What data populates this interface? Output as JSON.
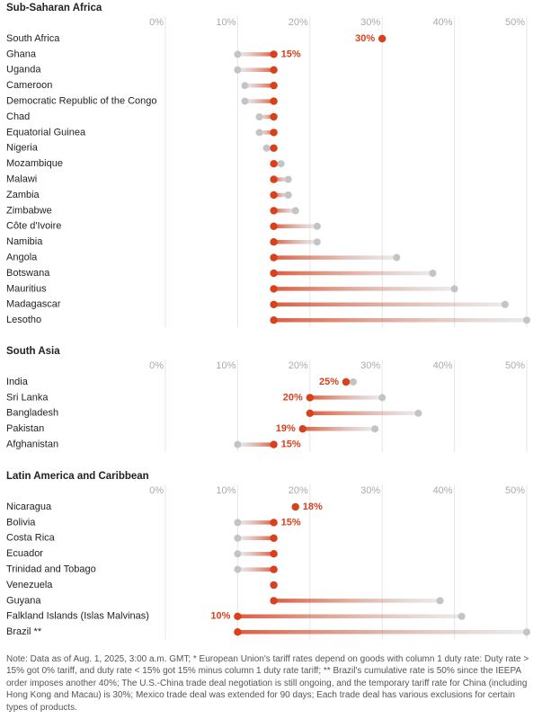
{
  "chart_data": [
    {
      "type": "dumbbell",
      "title": "Sub-Saharan Africa",
      "categories": [
        "South Africa",
        "Ghana",
        "Uganda",
        "Cameroon",
        "Democratic Republic of the Congo",
        "Chad",
        "Equatorial Guinea",
        "Nigeria",
        "Mozambique",
        "Malawi",
        "Zambia",
        "Zimbabwe",
        "Côte d'Ivoire",
        "Namibia",
        "Angola",
        "Botswana",
        "Mauritius",
        "Madagascar",
        "Lesotho"
      ],
      "series": [
        {
          "color": "#c4c4c4",
          "values": [
            30,
            10,
            10,
            11,
            11,
            13,
            13,
            14,
            16,
            17,
            17,
            18,
            21,
            21,
            32,
            37,
            40,
            47,
            50
          ]
        },
        {
          "color": "#d9401c",
          "values": [
            30,
            15,
            15,
            15,
            15,
            15,
            15,
            15,
            15,
            15,
            15,
            15,
            15,
            15,
            15,
            15,
            15,
            15,
            15
          ],
          "value_labels": [
            "30%",
            "15%",
            null,
            null,
            null,
            null,
            null,
            null,
            null,
            null,
            null,
            null,
            null,
            null,
            null,
            null,
            null,
            null,
            null
          ]
        }
      ],
      "xlim": [
        0,
        50
      ],
      "xticks": [
        {
          "value": 0,
          "label": "0%"
        },
        {
          "value": 10,
          "label": "10%"
        },
        {
          "value": 20,
          "label": "20%"
        },
        {
          "value": 30,
          "label": "30%"
        },
        {
          "value": 40,
          "label": "40%"
        },
        {
          "value": 50,
          "label": "50%"
        }
      ]
    },
    {
      "type": "dumbbell",
      "title": "South Asia",
      "categories": [
        "India",
        "Sri Lanka",
        "Bangladesh",
        "Pakistan",
        "Afghanistan"
      ],
      "series": [
        {
          "color": "#c4c4c4",
          "values": [
            26,
            30,
            35,
            29,
            10
          ]
        },
        {
          "color": "#d9401c",
          "values": [
            25,
            20,
            20,
            19,
            15
          ],
          "value_labels": [
            "25%",
            "20%",
            null,
            "19%",
            "15%"
          ]
        }
      ],
      "xlim": [
        0,
        50
      ],
      "xticks": [
        {
          "value": 0,
          "label": "0%"
        },
        {
          "value": 10,
          "label": "10%"
        },
        {
          "value": 20,
          "label": "20%"
        },
        {
          "value": 30,
          "label": "30%"
        },
        {
          "value": 40,
          "label": "40%"
        },
        {
          "value": 50,
          "label": "50%"
        }
      ]
    },
    {
      "type": "dumbbell",
      "title": "Latin America and Caribbean",
      "categories": [
        "Nicaragua",
        "Bolivia",
        "Costa Rica",
        "Ecuador",
        "Trinidad and Tobago",
        "Venezuela",
        "Guyana",
        "Falkland Islands (Islas Malvinas)",
        "Brazil **"
      ],
      "series": [
        {
          "color": "#c4c4c4",
          "values": [
            18,
            10,
            10,
            10,
            10,
            15,
            38,
            41,
            50
          ]
        },
        {
          "color": "#d9401c",
          "values": [
            18,
            15,
            15,
            15,
            15,
            15,
            15,
            10,
            10
          ],
          "value_labels": [
            "18%",
            "15%",
            null,
            null,
            null,
            null,
            null,
            "10%",
            null
          ]
        }
      ],
      "xlim": [
        0,
        50
      ],
      "xticks": [
        {
          "value": 0,
          "label": "0%"
        },
        {
          "value": 10,
          "label": "10%"
        },
        {
          "value": 20,
          "label": "20%"
        },
        {
          "value": 30,
          "label": "30%"
        },
        {
          "value": 40,
          "label": "40%"
        },
        {
          "value": 50,
          "label": "50%"
        }
      ]
    }
  ],
  "note": "Note: Data as of Aug. 1, 2025, 3:00 a.m. GMT; * European Union's tariff rates depend on goods with column 1 duty rate: Duty rate > 15% got 0% tariff, and duty rate < 15% got 15% minus column 1 duty rate tariff; ** Brazil's cumulative rate is 50% since the IEEPA order imposes another 40%; The U.S.-China trade deal negotiation is still ongoing, and the temporary tariff rate for China (including Hong Kong and Macau) is 30%; Mexico trade deal was extended for 90 days; Each trade deal has various exclusions for certain types of products."
}
